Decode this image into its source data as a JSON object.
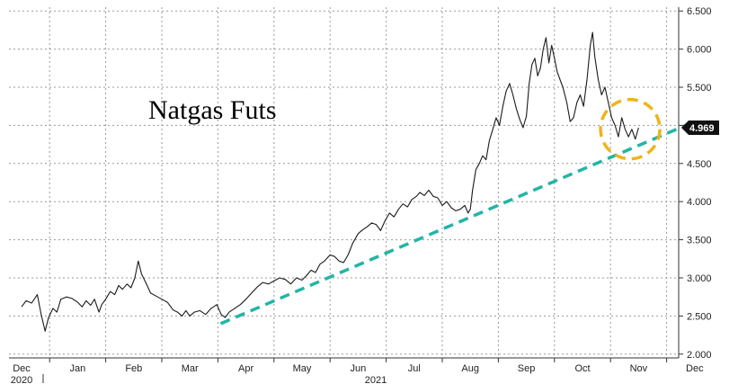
{
  "chart_data": {
    "type": "line",
    "title": "Natgas Futs",
    "xlabel": "",
    "ylabel": "",
    "ylim": [
      1.95,
      6.55
    ],
    "yticks": [
      "6.500",
      "6.000",
      "5.500",
      "5.000",
      "4.500",
      "4.000",
      "3.500",
      "3.000",
      "2.500",
      "2.000"
    ],
    "months": [
      "Dec",
      "Jan",
      "Feb",
      "Mar",
      "Apr",
      "May",
      "Jun",
      "Jul",
      "Aug",
      "Sep",
      "Oct",
      "Nov",
      "Dec"
    ],
    "years": [
      "2020",
      "2021"
    ],
    "last_value_label": "4.969",
    "grid": true,
    "series": [
      {
        "values": [
          [
            0.0,
            2.62
          ],
          [
            0.08,
            2.7
          ],
          [
            0.18,
            2.67
          ],
          [
            0.28,
            2.78
          ],
          [
            0.35,
            2.52
          ],
          [
            0.42,
            2.3
          ],
          [
            0.48,
            2.48
          ],
          [
            0.56,
            2.6
          ],
          [
            0.63,
            2.55
          ],
          [
            0.7,
            2.72
          ],
          [
            0.8,
            2.75
          ],
          [
            0.9,
            2.73
          ],
          [
            1.0,
            2.68
          ],
          [
            1.08,
            2.62
          ],
          [
            1.15,
            2.7
          ],
          [
            1.23,
            2.64
          ],
          [
            1.3,
            2.72
          ],
          [
            1.38,
            2.55
          ],
          [
            1.43,
            2.65
          ],
          [
            1.5,
            2.72
          ],
          [
            1.58,
            2.82
          ],
          [
            1.66,
            2.78
          ],
          [
            1.73,
            2.9
          ],
          [
            1.8,
            2.85
          ],
          [
            1.88,
            2.92
          ],
          [
            1.95,
            2.87
          ],
          [
            2.02,
            3.0
          ],
          [
            2.08,
            3.22
          ],
          [
            2.14,
            3.05
          ],
          [
            2.22,
            2.93
          ],
          [
            2.3,
            2.8
          ],
          [
            2.4,
            2.76
          ],
          [
            2.5,
            2.72
          ],
          [
            2.6,
            2.68
          ],
          [
            2.7,
            2.58
          ],
          [
            2.78,
            2.55
          ],
          [
            2.86,
            2.5
          ],
          [
            2.93,
            2.57
          ],
          [
            3.0,
            2.5
          ],
          [
            3.08,
            2.55
          ],
          [
            3.18,
            2.57
          ],
          [
            3.28,
            2.52
          ],
          [
            3.38,
            2.6
          ],
          [
            3.48,
            2.65
          ],
          [
            3.56,
            2.52
          ],
          [
            3.63,
            2.48
          ],
          [
            3.7,
            2.55
          ],
          [
            3.8,
            2.6
          ],
          [
            3.9,
            2.65
          ],
          [
            4.0,
            2.72
          ],
          [
            4.1,
            2.8
          ],
          [
            4.2,
            2.88
          ],
          [
            4.3,
            2.94
          ],
          [
            4.4,
            2.92
          ],
          [
            4.5,
            2.96
          ],
          [
            4.6,
            3.0
          ],
          [
            4.7,
            2.98
          ],
          [
            4.8,
            2.92
          ],
          [
            4.9,
            3.0
          ],
          [
            5.0,
            2.97
          ],
          [
            5.08,
            3.03
          ],
          [
            5.16,
            3.1
          ],
          [
            5.24,
            3.07
          ],
          [
            5.32,
            3.18
          ],
          [
            5.4,
            3.22
          ],
          [
            5.5,
            3.3
          ],
          [
            5.58,
            3.28
          ],
          [
            5.66,
            3.22
          ],
          [
            5.74,
            3.2
          ],
          [
            5.82,
            3.3
          ],
          [
            5.9,
            3.45
          ],
          [
            6.0,
            3.58
          ],
          [
            6.08,
            3.63
          ],
          [
            6.16,
            3.67
          ],
          [
            6.24,
            3.72
          ],
          [
            6.32,
            3.7
          ],
          [
            6.4,
            3.62
          ],
          [
            6.48,
            3.75
          ],
          [
            6.56,
            3.85
          ],
          [
            6.64,
            3.8
          ],
          [
            6.72,
            3.9
          ],
          [
            6.8,
            3.97
          ],
          [
            6.88,
            3.93
          ],
          [
            6.96,
            4.03
          ],
          [
            7.04,
            4.07
          ],
          [
            7.1,
            4.12
          ],
          [
            7.18,
            4.08
          ],
          [
            7.26,
            4.15
          ],
          [
            7.34,
            4.07
          ],
          [
            7.42,
            4.05
          ],
          [
            7.5,
            3.95
          ],
          [
            7.58,
            4.0
          ],
          [
            7.66,
            3.92
          ],
          [
            7.74,
            3.88
          ],
          [
            7.82,
            3.9
          ],
          [
            7.9,
            3.95
          ],
          [
            7.96,
            3.85
          ],
          [
            8.0,
            3.9
          ],
          [
            8.04,
            4.15
          ],
          [
            8.1,
            4.42
          ],
          [
            8.16,
            4.5
          ],
          [
            8.22,
            4.6
          ],
          [
            8.28,
            4.55
          ],
          [
            8.34,
            4.8
          ],
          [
            8.4,
            4.95
          ],
          [
            8.46,
            5.1
          ],
          [
            8.52,
            5.0
          ],
          [
            8.58,
            5.25
          ],
          [
            8.64,
            5.45
          ],
          [
            8.7,
            5.55
          ],
          [
            8.76,
            5.4
          ],
          [
            8.82,
            5.22
          ],
          [
            8.88,
            5.08
          ],
          [
            8.94,
            4.97
          ],
          [
            9.0,
            5.12
          ],
          [
            9.05,
            5.55
          ],
          [
            9.1,
            5.8
          ],
          [
            9.15,
            5.88
          ],
          [
            9.2,
            5.65
          ],
          [
            9.25,
            5.75
          ],
          [
            9.3,
            6.0
          ],
          [
            9.35,
            6.15
          ],
          [
            9.4,
            5.82
          ],
          [
            9.45,
            6.05
          ],
          [
            9.5,
            5.88
          ],
          [
            9.55,
            5.7
          ],
          [
            9.6,
            5.6
          ],
          [
            9.65,
            5.5
          ],
          [
            9.72,
            5.3
          ],
          [
            9.78,
            5.05
          ],
          [
            9.84,
            5.1
          ],
          [
            9.9,
            5.3
          ],
          [
            9.96,
            5.4
          ],
          [
            10.02,
            5.25
          ],
          [
            10.08,
            5.6
          ],
          [
            10.14,
            6.05
          ],
          [
            10.18,
            6.22
          ],
          [
            10.22,
            5.9
          ],
          [
            10.28,
            5.6
          ],
          [
            10.34,
            5.4
          ],
          [
            10.4,
            5.5
          ],
          [
            10.46,
            5.3
          ],
          [
            10.52,
            5.1
          ],
          [
            10.58,
            5.0
          ],
          [
            10.64,
            4.85
          ],
          [
            10.7,
            5.1
          ],
          [
            10.76,
            4.95
          ],
          [
            10.82,
            4.85
          ],
          [
            10.88,
            4.95
          ],
          [
            10.94,
            4.82
          ],
          [
            11.0,
            4.969
          ]
        ]
      }
    ],
    "trendline": {
      "from": [
        3.55,
        2.4
      ],
      "to": [
        12.0,
        5.05
      ],
      "color": "#22b5a5",
      "dash": true
    },
    "highlight_circle": {
      "cx": 10.85,
      "cy": 4.95,
      "color": "#f0b31c"
    },
    "colors": {
      "line": "#1a1a1a",
      "grid": "#9a9a9a",
      "badge": "#111111"
    }
  }
}
